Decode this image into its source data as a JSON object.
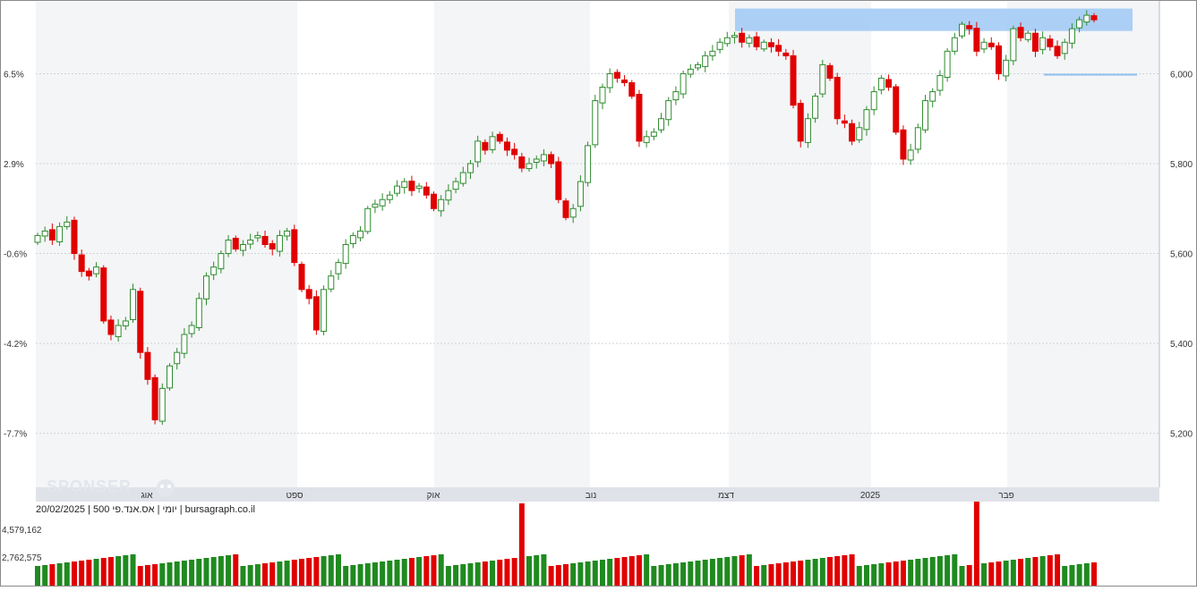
{
  "chart_data": {
    "type": "candlestick",
    "symbol_line": "יומי | אס.אנד.פי 500 | 20/02/2025 | bursagraph.co.il",
    "watermark": "SPONSER",
    "left_axis_labels": [
      "6.5%",
      "2.9%",
      "-0.6%",
      "-4.2%",
      "-7.7%"
    ],
    "right_axis_labels": [
      "6,000",
      "5,800",
      "5,600",
      "5,400",
      "5,200"
    ],
    "right_axis_values": [
      6000,
      5800,
      5600,
      5400,
      5200
    ],
    "month_labels": [
      "אוג",
      "ספט",
      "אוק",
      "נוב",
      "דצמ",
      "2025",
      "פבר"
    ],
    "volume_labels": [
      "4,579,162",
      "2,762,575"
    ],
    "price_range": [
      5080,
      6160
    ],
    "resistance_zone": {
      "low": 6095,
      "high": 6145
    },
    "support_level": 5998,
    "candles": []
  },
  "colors": {
    "up": "#2e8b2e",
    "down": "#e00000",
    "zone": "#9fc8f5",
    "support": "#8fc0ef",
    "vol_up": "#1f8a1f",
    "vol_down": "#e00000"
  }
}
